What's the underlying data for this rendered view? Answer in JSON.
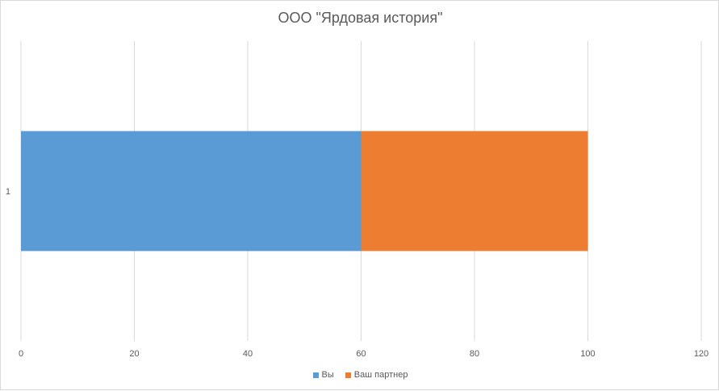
{
  "chart_data": {
    "type": "bar",
    "orientation": "horizontal",
    "stacked": true,
    "title": "ООО \"Ярдовая история\"",
    "categories": [
      "1"
    ],
    "series": [
      {
        "name": "Вы",
        "values": [
          60
        ],
        "color": "#5b9bd5"
      },
      {
        "name": "Ваш партнер",
        "values": [
          40
        ],
        "color": "#ed7d31"
      }
    ],
    "xlim": [
      0,
      120
    ],
    "xticks": [
      0,
      20,
      40,
      60,
      80,
      100,
      120
    ],
    "grid": true,
    "legend_position": "bottom"
  }
}
